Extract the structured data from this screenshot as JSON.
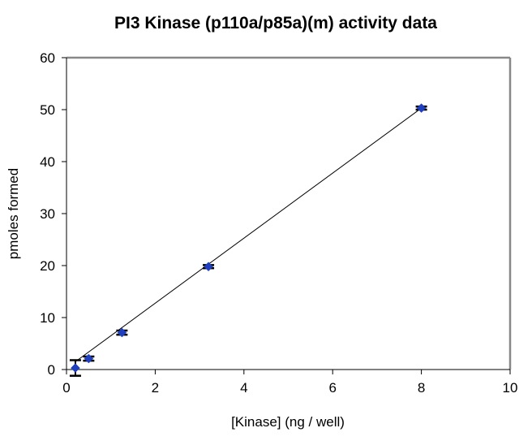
{
  "chart_data": {
    "type": "scatter",
    "title": "PI3 Kinase (p110a/p85a)(m) activity data",
    "xlabel": "[Kinase] (ng / well)",
    "ylabel": "pmoles formed",
    "xlim": [
      0,
      10
    ],
    "ylim": [
      0,
      60
    ],
    "xticks": [
      "0",
      "2",
      "4",
      "6",
      "8",
      "10"
    ],
    "yticks": [
      "0",
      "10",
      "20",
      "30",
      "40",
      "50",
      "60"
    ],
    "grid": false,
    "legend": "none",
    "series": [
      {
        "x": [
          0.2,
          0.5,
          1.25,
          3.2,
          8.0
        ],
        "y": [
          0.3,
          2.1,
          7.1,
          19.8,
          50.3
        ],
        "yerr": [
          1.5,
          0.4,
          0.4,
          0.3,
          0.3
        ],
        "marker": "diamond",
        "color": "#1f3fbf"
      }
    ],
    "trendline": {
      "type": "linear",
      "x": [
        0.2,
        8.0
      ],
      "y": [
        1.5,
        50.3
      ],
      "color": "#000000"
    }
  }
}
